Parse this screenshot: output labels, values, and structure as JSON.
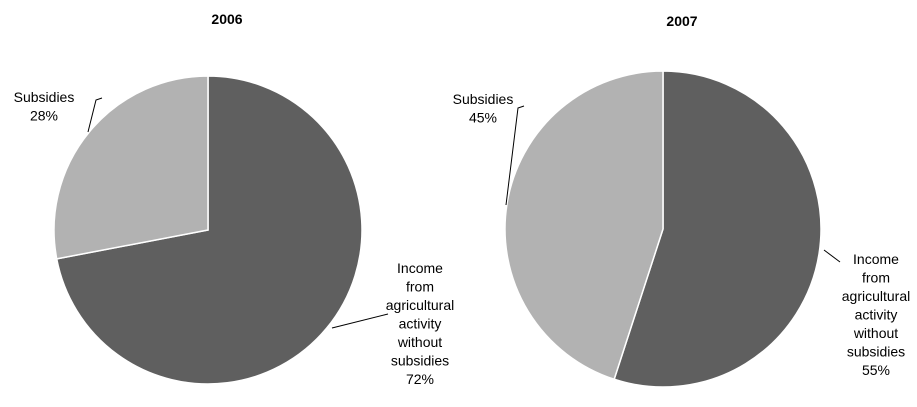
{
  "chart_data": [
    {
      "type": "pie",
      "title": "2006",
      "slices": [
        {
          "label": "Income from agricultural activity without subsidies",
          "value": 72,
          "display": "72%",
          "color": "#5f5f5f"
        },
        {
          "label": "Subsidies",
          "value": 28,
          "display": "28%",
          "color": "#b2b2b2"
        }
      ]
    },
    {
      "type": "pie",
      "title": "2007",
      "slices": [
        {
          "label": "Income from agricultural activity without subsidies",
          "value": 55,
          "display": "55%",
          "color": "#5f5f5f"
        },
        {
          "label": "Subsidies",
          "value": 45,
          "display": "45%",
          "color": "#b2b2b2"
        }
      ]
    }
  ]
}
